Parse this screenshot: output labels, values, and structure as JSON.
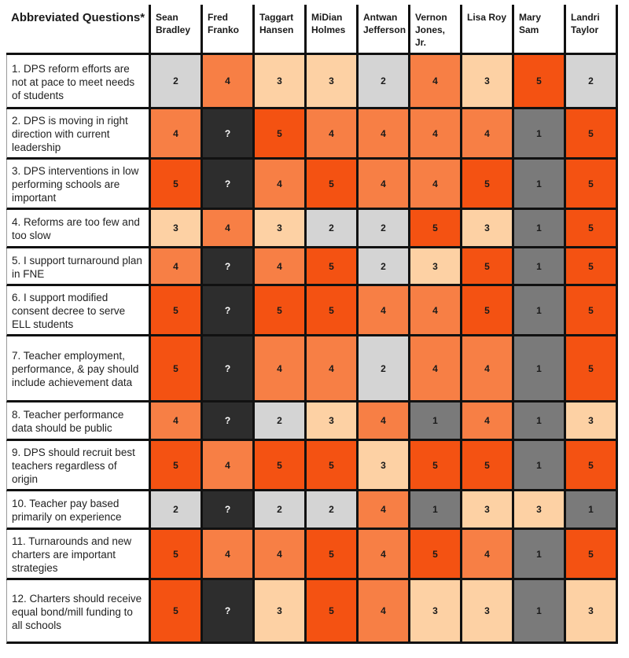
{
  "header": {
    "question_label": "Abbreviated Questions*",
    "candidates": [
      [
        "Sean",
        "Bradley"
      ],
      [
        "Fred",
        "Franko"
      ],
      [
        "Taggart",
        "Hansen"
      ],
      [
        "MiDian",
        "Holmes"
      ],
      [
        "Antwan",
        "Jefferson"
      ],
      [
        "Vernon",
        "Jones,",
        "Jr."
      ],
      [
        "Lisa Roy"
      ],
      [
        "Mary",
        "Sam"
      ],
      [
        "Landri",
        "Taylor"
      ]
    ]
  },
  "colors": {
    "1": "#7a7a7a",
    "2": "#d4d4d4",
    "3": "#fdd1a4",
    "4": "#f77f45",
    "5": "#f45212",
    "?": "#2d2d2d"
  },
  "rows": [
    {
      "question": "1. DPS reform efforts are not at pace to meet needs of students",
      "scores": [
        "2",
        "4",
        "3",
        "3",
        "2",
        "4",
        "3",
        "5",
        "2"
      ]
    },
    {
      "question": "2. DPS is moving in right direction with current leadership",
      "scores": [
        "4",
        "?",
        "5",
        "4",
        "4",
        "4",
        "4",
        "1",
        "5"
      ]
    },
    {
      "question": "3. DPS interventions in low performing schools are important",
      "scores": [
        "5",
        "?",
        "4",
        "5",
        "4",
        "4",
        "5",
        "1",
        "5"
      ]
    },
    {
      "question": "4. Reforms are too few and too slow",
      "scores": [
        "3",
        "4",
        "3",
        "2",
        "2",
        "5",
        "3",
        "1",
        "5"
      ]
    },
    {
      "question": "5. I support turnaround plan in FNE",
      "scores": [
        "4",
        "?",
        "4",
        "5",
        "2",
        "3",
        "5",
        "1",
        "5"
      ]
    },
    {
      "question": "6. I support modified consent decree to serve ELL students",
      "scores": [
        "5",
        "?",
        "5",
        "5",
        "4",
        "4",
        "5",
        "1",
        "5"
      ]
    },
    {
      "question": "7. Teacher employment, performance, & pay should include achievement data",
      "scores": [
        "5",
        "?",
        "4",
        "4",
        "2",
        "4",
        "4",
        "1",
        "5"
      ]
    },
    {
      "question": "8. Teacher performance data should be public",
      "scores": [
        "4",
        "?",
        "2",
        "3",
        "4",
        "1",
        "4",
        "1",
        "3"
      ]
    },
    {
      "question": "9. DPS should recruit best teachers regardless of origin",
      "scores": [
        "5",
        "4",
        "5",
        "5",
        "3",
        "5",
        "5",
        "1",
        "5"
      ]
    },
    {
      "question": "10. Teacher pay based primarily on experience",
      "scores": [
        "2",
        "?",
        "2",
        "2",
        "4",
        "1",
        "3",
        "3",
        "1"
      ]
    },
    {
      "question": "11. Turnarounds and new charters are important strategies",
      "scores": [
        "5",
        "4",
        "4",
        "5",
        "4",
        "5",
        "4",
        "1",
        "5"
      ]
    },
    {
      "question": "12. Charters should receive equal bond/mill funding to all schools",
      "scores": [
        "5",
        "?",
        "3",
        "5",
        "4",
        "3",
        "3",
        "1",
        "3"
      ]
    }
  ]
}
